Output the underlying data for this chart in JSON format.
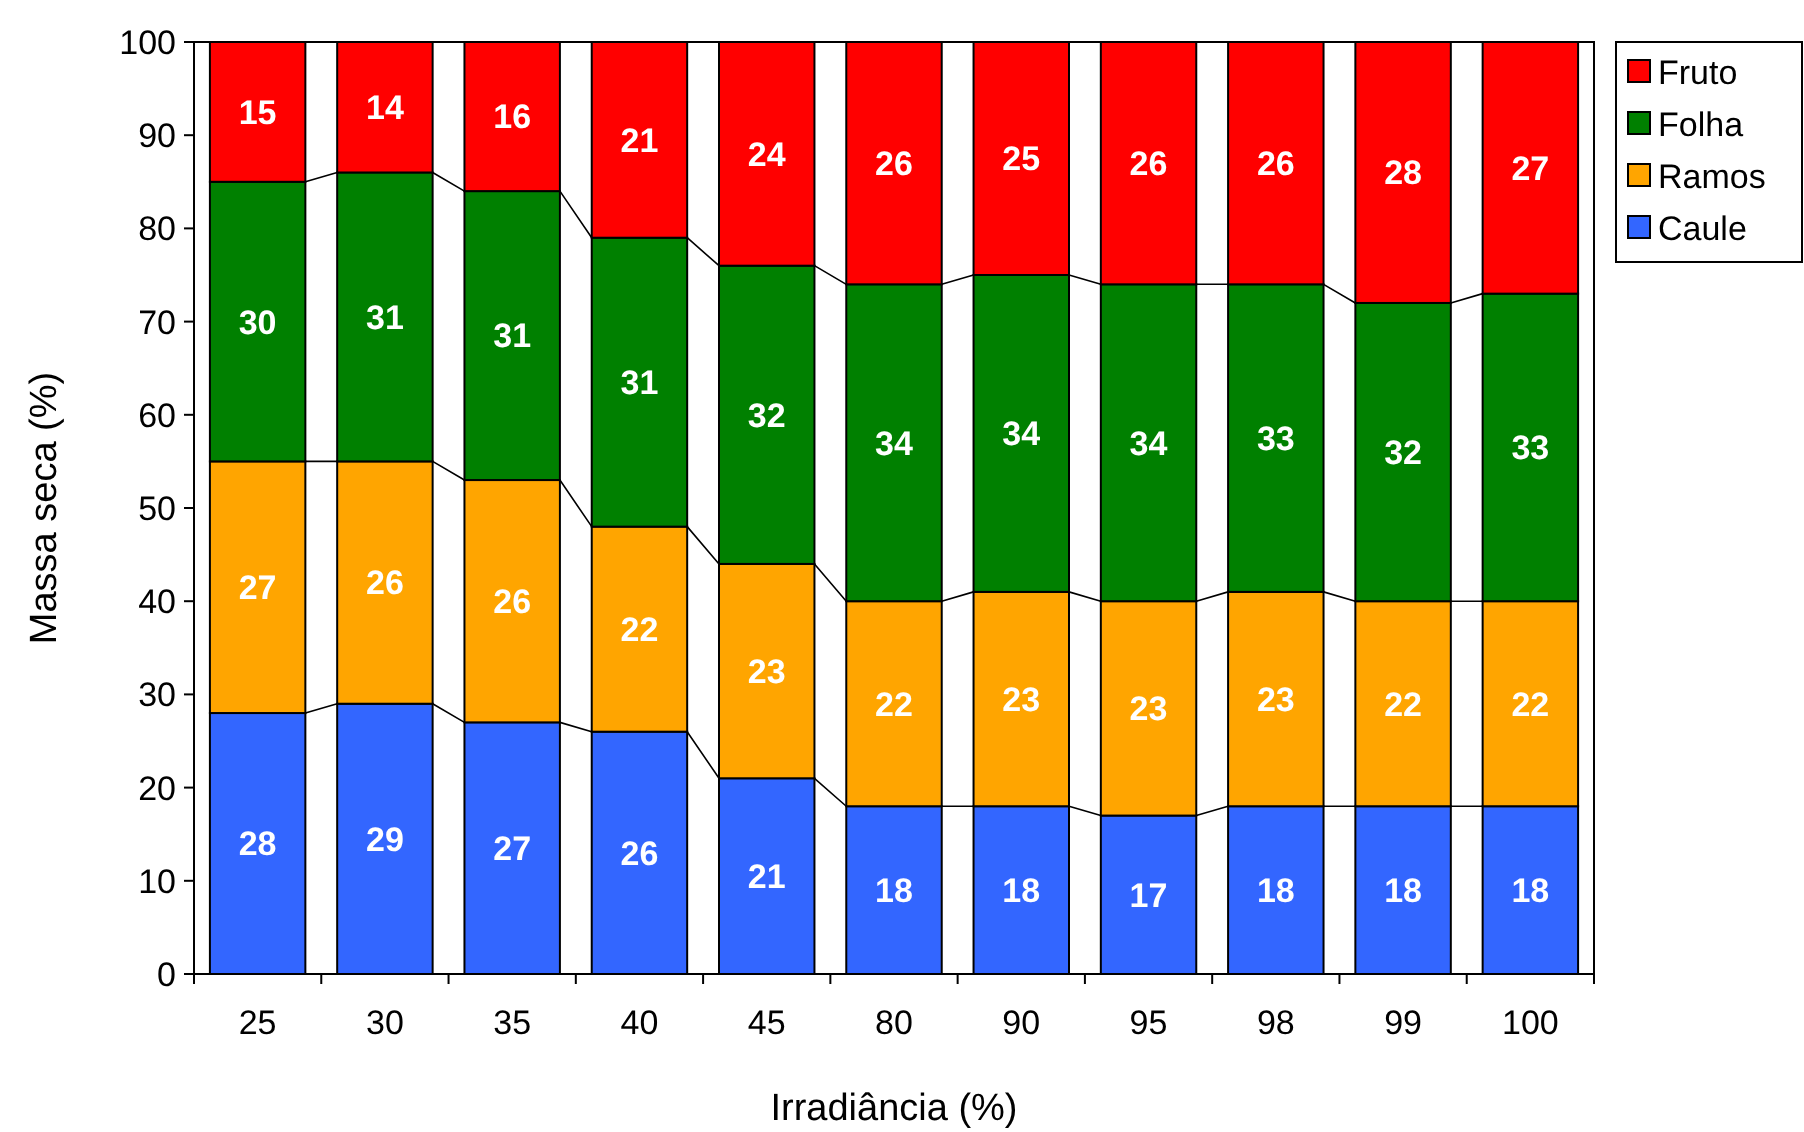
{
  "chart_data": {
    "type": "bar",
    "stacked": true,
    "xlabel": "Irradiância (%)",
    "ylabel": "Massa seca (%)",
    "categories": [
      "25",
      "30",
      "35",
      "40",
      "45",
      "80",
      "90",
      "95",
      "98",
      "99",
      "100"
    ],
    "ylim": [
      0,
      100
    ],
    "yticks": [
      0,
      10,
      20,
      30,
      40,
      50,
      60,
      70,
      80,
      90,
      100
    ],
    "grid": false,
    "legend": "right",
    "data_labels": true,
    "series": [
      {
        "name": "Caule",
        "color": "#3366ff",
        "values": [
          28,
          29,
          27,
          26,
          21,
          18,
          18,
          17,
          18,
          18,
          18
        ]
      },
      {
        "name": "Ramos",
        "color": "#ffa500",
        "values": [
          27,
          26,
          26,
          22,
          23,
          22,
          23,
          23,
          23,
          22,
          22
        ]
      },
      {
        "name": "Folha",
        "color": "#008000",
        "values": [
          30,
          31,
          31,
          31,
          32,
          34,
          34,
          34,
          33,
          32,
          33
        ]
      },
      {
        "name": "Fruto",
        "color": "#ff0000",
        "values": [
          15,
          14,
          16,
          21,
          24,
          26,
          25,
          26,
          26,
          28,
          27
        ]
      }
    ]
  }
}
